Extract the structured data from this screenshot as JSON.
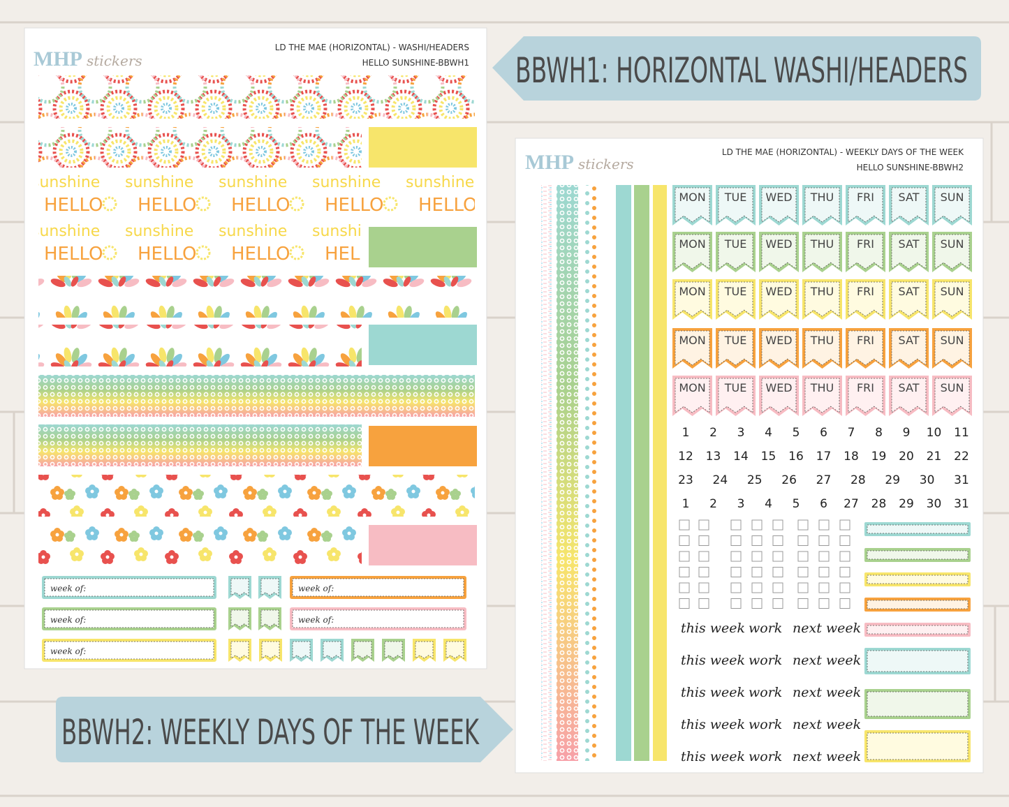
{
  "banners": {
    "top": "BBWH1: HORIZONTAL WASHI/HEADERS",
    "bottom": "BBWH2: WEEKLY DAYS OF THE WEEK"
  },
  "sheet1": {
    "logo": {
      "brand": "MHP",
      "script": "stickers"
    },
    "title_lines": [
      "LD THE MAE (HORIZONTAL) - WASHI/HEADERS",
      "HELLO SUNSHINE-BBWH1"
    ],
    "washi_words": [
      "sunshine",
      "HELLO"
    ],
    "week_of_label": "week of:"
  },
  "sheet2": {
    "logo": {
      "brand": "MHP",
      "script": "stickers"
    },
    "title_lines": [
      "LD THE MAE (HORIZONTAL)  - WEEKLY DAYS OF THE WEEK",
      "HELLO SUNSHINE-BBWH2"
    ],
    "days": [
      "MON",
      "TUE",
      "WED",
      "THU",
      "FRI",
      "SAT",
      "SUN"
    ],
    "numbers": [
      [
        1,
        2,
        3,
        4,
        5,
        6,
        7,
        8,
        9,
        10,
        11
      ],
      [
        12,
        13,
        14,
        15,
        16,
        17,
        18,
        19,
        20,
        21,
        22
      ],
      [
        23,
        24,
        25,
        26,
        27,
        28,
        29,
        30,
        31
      ],
      [
        1,
        2,
        3,
        4,
        5,
        6,
        27,
        28,
        29,
        30,
        31
      ]
    ],
    "labels": [
      "this week",
      "work",
      "next week"
    ]
  }
}
